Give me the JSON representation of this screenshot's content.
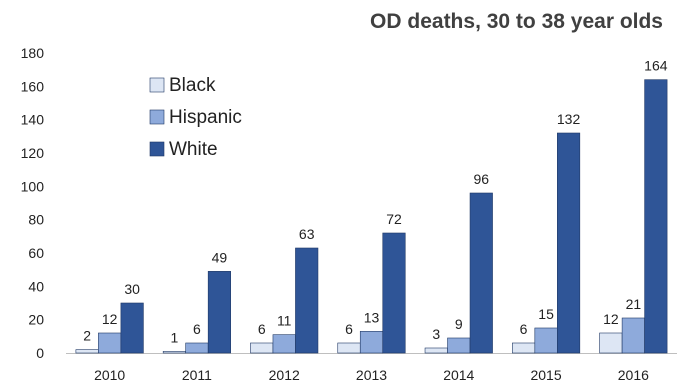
{
  "chart_data": {
    "type": "bar",
    "title": "OD deaths, 30 to 38 year olds",
    "xlabel": "",
    "ylabel": "",
    "categories": [
      "2010",
      "2011",
      "2012",
      "2013",
      "2014",
      "2015",
      "2016"
    ],
    "ylim": [
      0,
      180
    ],
    "yticks": [
      0,
      20,
      40,
      60,
      80,
      100,
      120,
      140,
      160,
      180
    ],
    "grid": false,
    "legend_position": "top-left",
    "series": [
      {
        "name": "Black",
        "color": "#dde6f4",
        "values": [
          2,
          1,
          6,
          6,
          3,
          6,
          12
        ]
      },
      {
        "name": "Hispanic",
        "color": "#8eaadb",
        "values": [
          12,
          6,
          11,
          13,
          9,
          15,
          21
        ]
      },
      {
        "name": "White",
        "color": "#2f5597",
        "values": [
          30,
          49,
          63,
          72,
          96,
          132,
          164
        ]
      }
    ],
    "edge_color": "#1f3864"
  }
}
